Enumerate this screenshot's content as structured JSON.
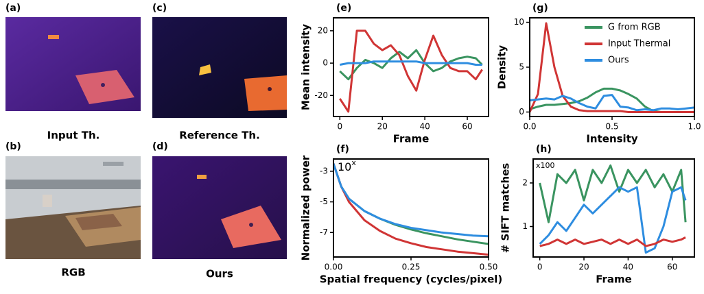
{
  "panels": [
    {
      "label": "(a)",
      "caption": "Input Th."
    },
    {
      "label": "(b)",
      "caption": "RGB"
    },
    {
      "label": "(c)",
      "caption": "Reference Th."
    },
    {
      "label": "(d)",
      "caption": "Ours"
    }
  ],
  "chart_data": [
    {
      "type": "line",
      "label": "(e)",
      "xlabel": "Frame",
      "ylabel": "Mean intensity",
      "xlim": [
        -3,
        70
      ],
      "ylim": [
        -33,
        28
      ],
      "xticks": [
        0,
        20,
        40,
        60
      ],
      "yticks": [
        -20,
        0,
        20
      ],
      "x": [
        0,
        4,
        8,
        12,
        16,
        20,
        24,
        28,
        32,
        36,
        40,
        44,
        48,
        52,
        56,
        60,
        64,
        67
      ],
      "series": [
        {
          "color": "#3a9460",
          "values": [
            -5,
            -10,
            -3,
            2,
            0,
            -3,
            3,
            7,
            3,
            8,
            0,
            -5,
            -3,
            1,
            3,
            4,
            3,
            -1
          ]
        },
        {
          "color": "#d03535",
          "values": [
            -22,
            -30,
            20,
            20,
            12,
            8,
            11,
            5,
            -8,
            -17,
            2,
            17,
            5,
            -3,
            -5,
            -5,
            -10,
            -4
          ]
        },
        {
          "color": "#2e8de0",
          "values": [
            -1,
            0,
            0,
            0,
            1,
            1,
            1,
            1,
            1,
            1,
            0,
            0,
            0,
            0,
            0,
            0,
            -1,
            -1
          ]
        }
      ]
    },
    {
      "type": "line",
      "label": "(f)",
      "xlabel": "Spatial frequency (cycles/pixel)",
      "ylabel": "Normalized power",
      "annotation_base": "10",
      "annotation_exp": "x",
      "xlim": [
        0,
        0.5
      ],
      "ylim": [
        -8.6,
        -2.2
      ],
      "xticks": [
        {
          "value": 0,
          "label": "0.00"
        },
        0.25,
        {
          "value": 0.5,
          "label": "0.50"
        }
      ],
      "yticks": [
        -3,
        -5,
        -7
      ],
      "x": [
        0,
        0.025,
        0.05,
        0.1,
        0.15,
        0.2,
        0.25,
        0.3,
        0.35,
        0.4,
        0.45,
        0.5
      ],
      "series": [
        {
          "color": "#3a9460",
          "values": [
            -2.5,
            -4.0,
            -4.8,
            -5.6,
            -6.1,
            -6.5,
            -6.8,
            -7.05,
            -7.25,
            -7.45,
            -7.6,
            -7.75
          ]
        },
        {
          "color": "#d03535",
          "values": [
            -2.5,
            -4.0,
            -5.0,
            -6.2,
            -6.9,
            -7.4,
            -7.7,
            -7.95,
            -8.1,
            -8.25,
            -8.35,
            -8.45
          ]
        },
        {
          "color": "#2e8de0",
          "values": [
            -2.5,
            -4.0,
            -4.8,
            -5.6,
            -6.1,
            -6.45,
            -6.7,
            -6.85,
            -7.0,
            -7.1,
            -7.2,
            -7.25
          ]
        }
      ]
    },
    {
      "type": "line",
      "label": "(g)",
      "xlabel": "Intensity",
      "ylabel": "Density",
      "legend": "upper right",
      "xlim": [
        0,
        1
      ],
      "ylim": [
        -0.5,
        10.5
      ],
      "xticks": [
        {
          "value": 0,
          "label": "0.0"
        },
        0.5,
        {
          "value": 1,
          "label": "1.0"
        }
      ],
      "yticks": [
        0,
        5,
        10
      ],
      "x": [
        0,
        0.05,
        0.1,
        0.15,
        0.2,
        0.25,
        0.3,
        0.35,
        0.4,
        0.45,
        0.5,
        0.55,
        0.6,
        0.65,
        0.7,
        0.75,
        0.8,
        0.85,
        0.9,
        0.95,
        1
      ],
      "series": [
        {
          "name": "G from RGB",
          "color": "#3a9460",
          "values": [
            0.3,
            0.6,
            0.8,
            0.8,
            0.9,
            1.0,
            1.2,
            1.6,
            2.2,
            2.6,
            2.6,
            2.4,
            2.0,
            1.5,
            0.6,
            0.1,
            0,
            0,
            0,
            0,
            0
          ]
        },
        {
          "name": "Input Thermal",
          "color": "#d03535",
          "values": [
            0,
            2,
            9.9,
            5,
            1.8,
            0.6,
            0.2,
            0.1,
            0.1,
            0.1,
            0.1,
            0.1,
            0,
            0,
            0,
            0,
            0,
            0,
            0,
            0,
            0
          ]
        },
        {
          "name": "Ours",
          "color": "#2e8de0",
          "values": [
            1.3,
            1.4,
            1.5,
            1.4,
            1.8,
            1.5,
            1.0,
            0.6,
            0.4,
            1.8,
            1.9,
            0.6,
            0.5,
            0.2,
            0.3,
            0.2,
            0.4,
            0.4,
            0.3,
            0.4,
            0.5
          ]
        }
      ]
    },
    {
      "type": "line",
      "label": "(h)",
      "xlabel": "Frame",
      "ylabel": "# SIFT matches",
      "annotation": "x100",
      "xlim": [
        -3,
        70
      ],
      "ylim": [
        0.3,
        2.55
      ],
      "xticks": [
        0,
        20,
        40,
        60
      ],
      "yticks": [
        1,
        2
      ],
      "x": [
        0,
        4,
        8,
        12,
        16,
        20,
        24,
        28,
        32,
        36,
        40,
        44,
        48,
        52,
        56,
        60,
        64,
        66
      ],
      "series": [
        {
          "color": "#3a9460",
          "values": [
            2.0,
            1.1,
            2.2,
            2.0,
            2.3,
            1.6,
            2.3,
            2.0,
            2.4,
            1.8,
            2.3,
            2.0,
            2.3,
            1.9,
            2.2,
            1.8,
            2.3,
            1.1
          ]
        },
        {
          "color": "#2e8de0",
          "values": [
            0.6,
            0.8,
            1.1,
            0.9,
            1.2,
            1.5,
            1.3,
            1.5,
            1.7,
            1.9,
            1.8,
            1.9,
            0.4,
            0.5,
            1.0,
            1.8,
            1.9,
            1.6
          ]
        },
        {
          "color": "#d03535",
          "values": [
            0.55,
            0.6,
            0.7,
            0.6,
            0.7,
            0.6,
            0.65,
            0.7,
            0.6,
            0.7,
            0.6,
            0.7,
            0.55,
            0.6,
            0.7,
            0.65,
            0.7,
            0.75
          ]
        }
      ]
    }
  ]
}
